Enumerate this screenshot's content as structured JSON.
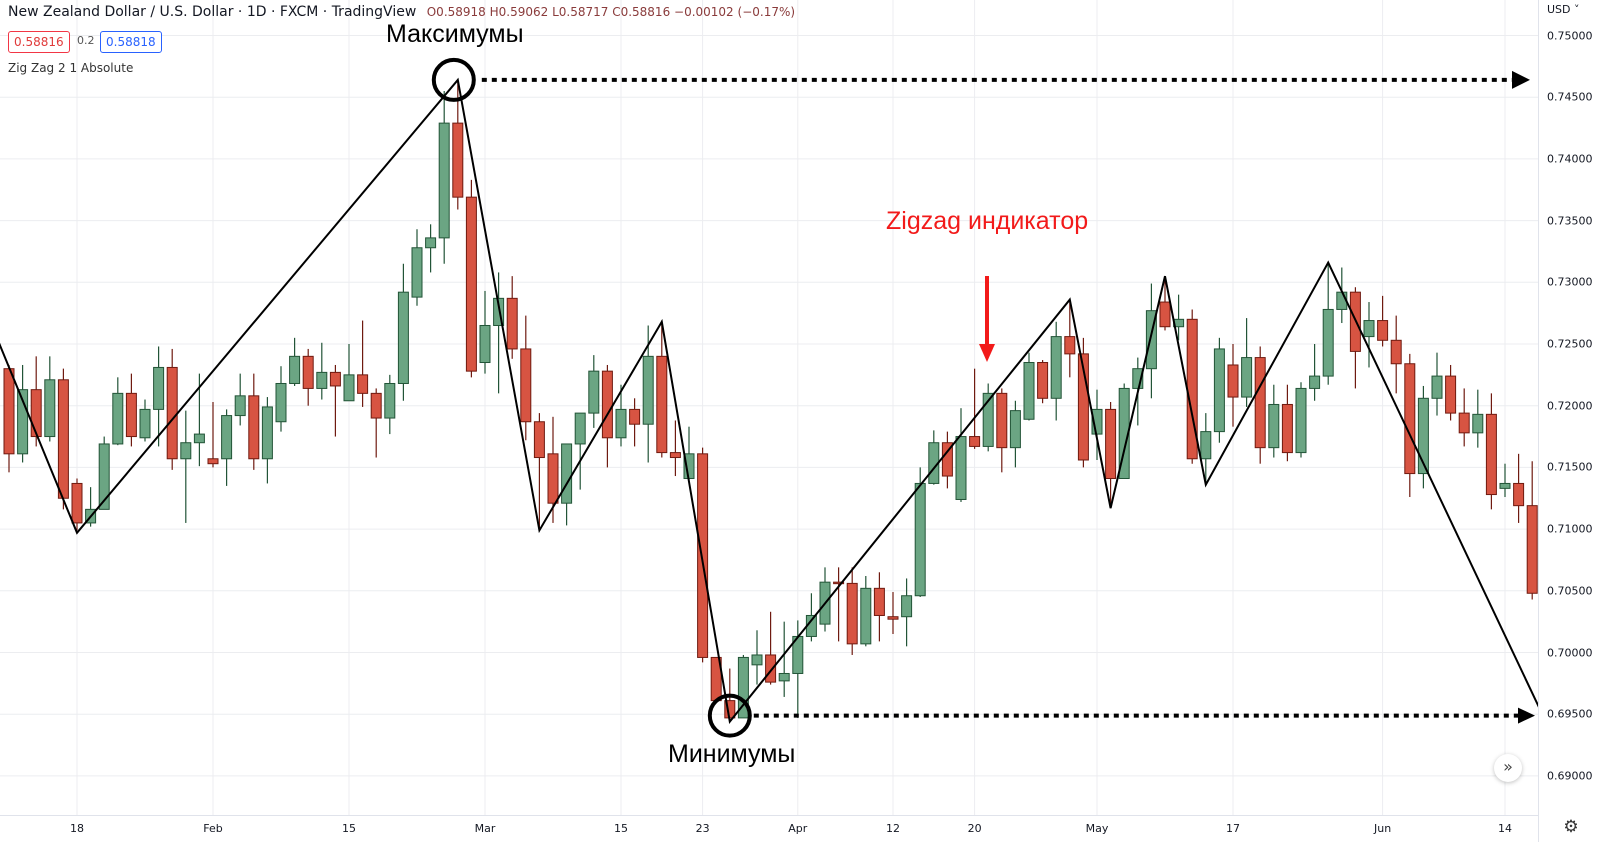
{
  "header": {
    "symbol_title": "New Zealand Dollar / U.S. Dollar · 1D · FXCM · TradingView",
    "ohlc": "O0.58918 H0.59062 L0.58717 C0.58816 −0.00102 (−0.17%)",
    "sell_price": "0.58816",
    "spread": "0.2",
    "buy_price": "0.58818"
  },
  "indicator": {
    "label": "Zig Zag 2 1 Absolute"
  },
  "annotations": {
    "maxima": "Максимумы",
    "minima": "Минимумы",
    "zigzag_label": "Zigzag индикатор"
  },
  "price_axis": {
    "currency": "USD ˅",
    "labels": [
      "0.75000",
      "0.74500",
      "0.74000",
      "0.73500",
      "0.73000",
      "0.72500",
      "0.72000",
      "0.71500",
      "0.71000",
      "0.70500",
      "0.70000",
      "0.69500",
      "0.69000"
    ]
  },
  "time_axis": {
    "ticks": [
      {
        "label": "18",
        "index": 5
      },
      {
        "label": "Feb",
        "index": 15
      },
      {
        "label": "15",
        "index": 25
      },
      {
        "label": "Mar",
        "index": 35
      },
      {
        "label": "15",
        "index": 45
      },
      {
        "label": "23",
        "index": 51
      },
      {
        "label": "Apr",
        "index": 58
      },
      {
        "label": "12",
        "index": 65
      },
      {
        "label": "20",
        "index": 71
      },
      {
        "label": "May",
        "index": 80
      },
      {
        "label": "17",
        "index": 90
      },
      {
        "label": "Jun",
        "index": 101
      },
      {
        "label": "14",
        "index": 110
      }
    ]
  },
  "controls": {
    "scroll_to_latest": "»",
    "settings": "⚙"
  },
  "colors": {
    "up": "#6ba583",
    "up_border": "#225437",
    "down": "#d75442",
    "down_border": "#6f1a10",
    "zigzag": "#000000",
    "annotation_red": "#f21a1a"
  },
  "chart_data": {
    "type": "candlestick",
    "ylim": [
      0.6885,
      0.7515
    ],
    "grid": true,
    "candles": [
      [
        0.723,
        0.7233,
        0.7146,
        0.7161
      ],
      [
        0.7161,
        0.7233,
        0.7154,
        0.7213
      ],
      [
        0.7213,
        0.724,
        0.7167,
        0.7175
      ],
      [
        0.7175,
        0.724,
        0.7171,
        0.7221
      ],
      [
        0.7221,
        0.723,
        0.7116,
        0.7125
      ],
      [
        0.7137,
        0.7141,
        0.7099,
        0.7105
      ],
      [
        0.7105,
        0.7134,
        0.7102,
        0.7116
      ],
      [
        0.7116,
        0.7175,
        0.7116,
        0.7169
      ],
      [
        0.7169,
        0.7223,
        0.7168,
        0.721
      ],
      [
        0.721,
        0.7226,
        0.7167,
        0.7175
      ],
      [
        0.7174,
        0.7205,
        0.7171,
        0.7197
      ],
      [
        0.7197,
        0.7248,
        0.7167,
        0.7231
      ],
      [
        0.7231,
        0.7246,
        0.7148,
        0.7157
      ],
      [
        0.7157,
        0.7196,
        0.7105,
        0.717
      ],
      [
        0.717,
        0.7226,
        0.7151,
        0.7177
      ],
      [
        0.7157,
        0.7203,
        0.715,
        0.7153
      ],
      [
        0.7157,
        0.7197,
        0.7135,
        0.7192
      ],
      [
        0.7192,
        0.7226,
        0.7184,
        0.7208
      ],
      [
        0.7208,
        0.7226,
        0.7148,
        0.7157
      ],
      [
        0.7157,
        0.7207,
        0.7137,
        0.7199
      ],
      [
        0.7187,
        0.7232,
        0.7179,
        0.7218
      ],
      [
        0.7218,
        0.7255,
        0.7216,
        0.724
      ],
      [
        0.724,
        0.7246,
        0.72,
        0.7214
      ],
      [
        0.7214,
        0.7251,
        0.7205,
        0.7227
      ],
      [
        0.7227,
        0.7233,
        0.7175,
        0.7216
      ],
      [
        0.7204,
        0.725,
        0.7204,
        0.7225
      ],
      [
        0.7225,
        0.7269,
        0.7199,
        0.721
      ],
      [
        0.721,
        0.7214,
        0.7158,
        0.719
      ],
      [
        0.719,
        0.7225,
        0.7177,
        0.7218
      ],
      [
        0.7218,
        0.7315,
        0.7204,
        0.7292
      ],
      [
        0.7288,
        0.7343,
        0.7281,
        0.7328
      ],
      [
        0.7328,
        0.7347,
        0.7308,
        0.7336
      ],
      [
        0.7336,
        0.7455,
        0.7315,
        0.7429
      ],
      [
        0.7429,
        0.7464,
        0.7359,
        0.7369
      ],
      [
        0.7369,
        0.7383,
        0.7223,
        0.7228
      ],
      [
        0.7235,
        0.7293,
        0.7226,
        0.7265
      ],
      [
        0.7265,
        0.7308,
        0.721,
        0.7287
      ],
      [
        0.7287,
        0.7305,
        0.7238,
        0.7246
      ],
      [
        0.7246,
        0.7273,
        0.7172,
        0.7187
      ],
      [
        0.7187,
        0.7194,
        0.7099,
        0.7158
      ],
      [
        0.7161,
        0.7191,
        0.7105,
        0.7121
      ],
      [
        0.7121,
        0.7169,
        0.7103,
        0.7169
      ],
      [
        0.7169,
        0.7194,
        0.7132,
        0.7194
      ],
      [
        0.7194,
        0.7241,
        0.7182,
        0.7228
      ],
      [
        0.7228,
        0.7233,
        0.715,
        0.7174
      ],
      [
        0.7174,
        0.7217,
        0.7167,
        0.7197
      ],
      [
        0.7197,
        0.7206,
        0.7167,
        0.7185
      ],
      [
        0.7185,
        0.7265,
        0.7154,
        0.724
      ],
      [
        0.724,
        0.7269,
        0.7158,
        0.7162
      ],
      [
        0.7162,
        0.7188,
        0.7143,
        0.7158
      ],
      [
        0.7141,
        0.7183,
        0.714,
        0.7161
      ],
      [
        0.7161,
        0.7166,
        0.6992,
        0.6996
      ],
      [
        0.6996,
        0.6996,
        0.6961,
        0.6961
      ],
      [
        0.6961,
        0.6987,
        0.6944,
        0.6947
      ],
      [
        0.6947,
        0.6998,
        0.6947,
        0.6996
      ],
      [
        0.699,
        0.7018,
        0.6974,
        0.6998
      ],
      [
        0.6998,
        0.7033,
        0.6974,
        0.6976
      ],
      [
        0.6977,
        0.7025,
        0.6964,
        0.6983
      ],
      [
        0.6983,
        0.7026,
        0.6947,
        0.7013
      ],
      [
        0.7013,
        0.7048,
        0.7009,
        0.703
      ],
      [
        0.7023,
        0.7069,
        0.7017,
        0.7057
      ],
      [
        0.7057,
        0.7069,
        0.7009,
        0.7056
      ],
      [
        0.7056,
        0.7069,
        0.6998,
        0.7007
      ],
      [
        0.7007,
        0.7062,
        0.7005,
        0.7052
      ],
      [
        0.7052,
        0.7065,
        0.7009,
        0.703
      ],
      [
        0.7029,
        0.7049,
        0.7015,
        0.7027
      ],
      [
        0.7029,
        0.706,
        0.7005,
        0.7046
      ],
      [
        0.7046,
        0.715,
        0.7045,
        0.7137
      ],
      [
        0.7137,
        0.718,
        0.7136,
        0.717
      ],
      [
        0.717,
        0.7179,
        0.7133,
        0.7143
      ],
      [
        0.7124,
        0.7198,
        0.7122,
        0.7175
      ],
      [
        0.7175,
        0.723,
        0.7165,
        0.7167
      ],
      [
        0.7167,
        0.7218,
        0.7163,
        0.721
      ],
      [
        0.721,
        0.7214,
        0.7146,
        0.7166
      ],
      [
        0.7166,
        0.7204,
        0.715,
        0.7196
      ],
      [
        0.7189,
        0.7243,
        0.7188,
        0.7235
      ],
      [
        0.7235,
        0.7237,
        0.7202,
        0.7206
      ],
      [
        0.7206,
        0.7268,
        0.7188,
        0.7256
      ],
      [
        0.7256,
        0.7286,
        0.7223,
        0.7242
      ],
      [
        0.7242,
        0.7255,
        0.715,
        0.7156
      ],
      [
        0.7177,
        0.7213,
        0.7156,
        0.7197
      ],
      [
        0.7197,
        0.7203,
        0.7117,
        0.7141
      ],
      [
        0.7141,
        0.7218,
        0.7141,
        0.7214
      ],
      [
        0.7214,
        0.7239,
        0.7184,
        0.723
      ],
      [
        0.723,
        0.7299,
        0.7206,
        0.7277
      ],
      [
        0.7284,
        0.7305,
        0.7261,
        0.7264
      ],
      [
        0.7264,
        0.729,
        0.7253,
        0.727
      ],
      [
        0.727,
        0.7278,
        0.7153,
        0.7157
      ],
      [
        0.7157,
        0.7194,
        0.7136,
        0.7179
      ],
      [
        0.7179,
        0.7255,
        0.717,
        0.7246
      ],
      [
        0.7233,
        0.725,
        0.7183,
        0.7207
      ],
      [
        0.7207,
        0.7271,
        0.7199,
        0.7239
      ],
      [
        0.7239,
        0.7248,
        0.7153,
        0.7166
      ],
      [
        0.7166,
        0.7217,
        0.7158,
        0.7201
      ],
      [
        0.7201,
        0.7217,
        0.7155,
        0.7162
      ],
      [
        0.7162,
        0.7219,
        0.7158,
        0.7214
      ],
      [
        0.7214,
        0.725,
        0.7204,
        0.7224
      ],
      [
        0.7224,
        0.7316,
        0.7217,
        0.7278
      ],
      [
        0.7278,
        0.7312,
        0.7267,
        0.7292
      ],
      [
        0.7292,
        0.7296,
        0.7214,
        0.7244
      ],
      [
        0.7256,
        0.7284,
        0.7231,
        0.7269
      ],
      [
        0.7269,
        0.7289,
        0.7248,
        0.7253
      ],
      [
        0.7253,
        0.7273,
        0.721,
        0.7234
      ],
      [
        0.7234,
        0.7242,
        0.7126,
        0.7145
      ],
      [
        0.7145,
        0.7216,
        0.7133,
        0.7206
      ],
      [
        0.7206,
        0.7243,
        0.7192,
        0.7224
      ],
      [
        0.7224,
        0.7233,
        0.7188,
        0.7194
      ],
      [
        0.7194,
        0.7214,
        0.7167,
        0.7178
      ],
      [
        0.7178,
        0.7213,
        0.7166,
        0.7193
      ],
      [
        0.7193,
        0.721,
        0.7116,
        0.7128
      ],
      [
        0.7133,
        0.7153,
        0.7126,
        0.7137
      ],
      [
        0.7137,
        0.7161,
        0.7105,
        0.7119
      ],
      [
        0.7119,
        0.7155,
        0.7043,
        0.7048
      ]
    ],
    "zigzag": [
      [
        -1,
        0.7258
      ],
      [
        5,
        0.7097
      ],
      [
        33,
        0.7464
      ],
      [
        39,
        0.7099
      ],
      [
        48,
        0.7268
      ],
      [
        53,
        0.6944
      ],
      [
        78,
        0.7286
      ],
      [
        81,
        0.7117
      ],
      [
        85,
        0.7305
      ],
      [
        88,
        0.7136
      ],
      [
        97,
        0.7316
      ],
      [
        113,
        0.6944
      ]
    ],
    "marked_high": {
      "index": 33,
      "price": 0.7464
    },
    "marked_low": {
      "index": 53,
      "price": 0.6944
    }
  }
}
